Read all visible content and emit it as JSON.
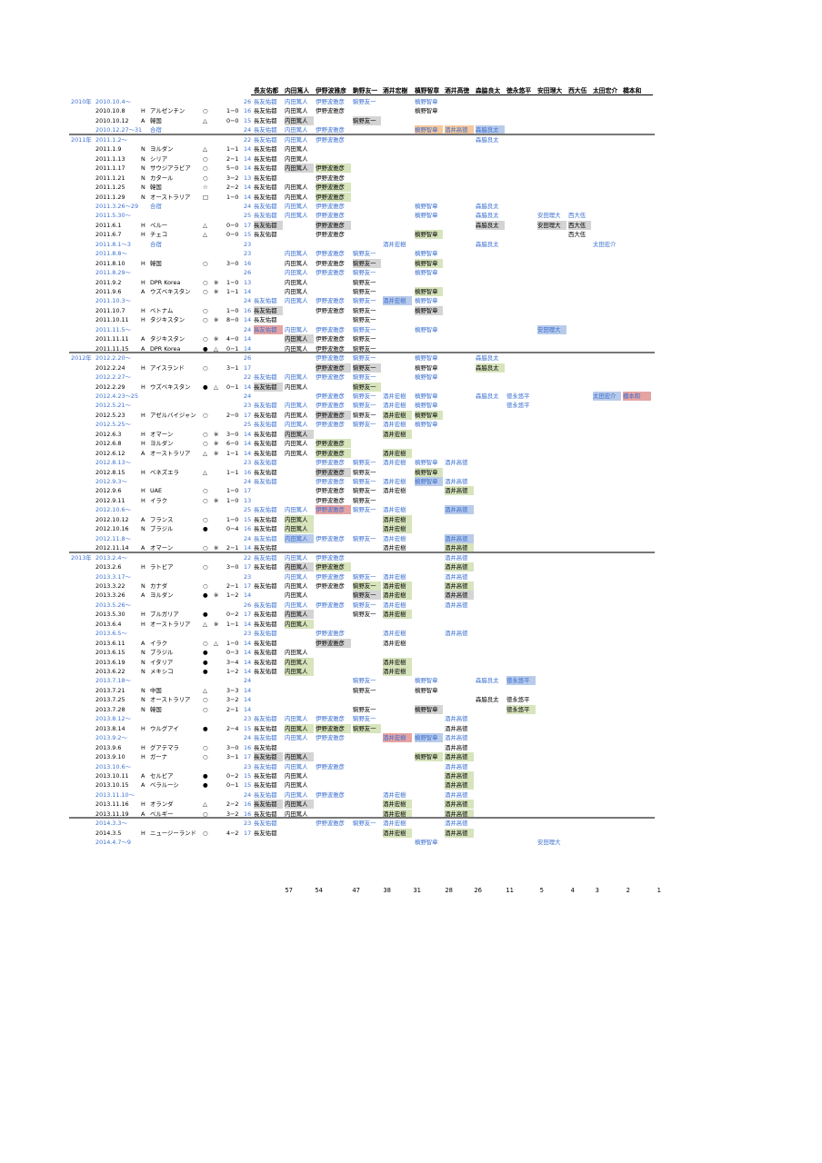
{
  "headers": [
    "長友佑都",
    "内田篤人",
    "伊野波雅彦",
    "駒野友一",
    "酒井宏樹",
    "槙野智章",
    "酒井高徳",
    "森脇良太",
    "徳永悠平",
    "安田理大",
    "西大伍",
    "太田宏介",
    "橋本和"
  ],
  "totals": [
    "57",
    "54",
    "47",
    "38",
    "31",
    "28",
    "26",
    "11",
    "5",
    "4",
    "3",
    "2",
    "1"
  ],
  "rows": [
    {
      "year": "2010年",
      "date": "2010.10.4～",
      "num": "26",
      "kind": "camp",
      "p": {
        "0": "",
        "1": "",
        "2": "",
        "3": "",
        "5": ""
      }
    },
    {
      "date": "2010.10.8",
      "ha": "H",
      "opp": "アルゼンチン",
      "res": "○",
      "score": "1−0",
      "num": "16",
      "p": {
        "0": "",
        "1": "",
        "2": "",
        "5": ""
      }
    },
    {
      "date": "2010.10.12",
      "ha": "A",
      "opp": "韓国",
      "res": "△",
      "score": "0−0",
      "num": "15",
      "p": {
        "0": "",
        "1": "g",
        "3": "g"
      }
    },
    {
      "date": "2010.12.27〜31",
      "opp": "合宿",
      "num": "24",
      "kind": "camp",
      "p": {
        "0": "",
        "1": "",
        "2": "",
        "5": "o",
        "6": "o",
        "7": "b"
      }
    },
    {
      "year": "2011年",
      "date": "2011.1.2〜",
      "num": "22",
      "kind": "camp",
      "sep": true,
      "p": {
        "0": "",
        "1": "",
        "2": "",
        "7": ""
      }
    },
    {
      "date": "2011.1.9",
      "ha": "N",
      "opp": "ヨルダン",
      "res": "△",
      "score": "1−1",
      "num": "14",
      "p": {
        "0": "",
        "1": ""
      }
    },
    {
      "date": "2011.1.13",
      "ha": "N",
      "opp": "シリア",
      "res": "○",
      "score": "2−1",
      "num": "14",
      "p": {
        "0": "",
        "1": ""
      }
    },
    {
      "date": "2011.1.17",
      "ha": "N",
      "opp": "サウジアラビア",
      "res": "○",
      "score": "5−0",
      "num": "14",
      "p": {
        "0": "",
        "1": "g",
        "2": "n"
      }
    },
    {
      "date": "2011.1.21",
      "ha": "N",
      "opp": "カタール",
      "res": "○",
      "score": "3−2",
      "num": "13",
      "p": {
        "0": "",
        "2": ""
      }
    },
    {
      "date": "2011.1.25",
      "ha": "N",
      "opp": "韓国",
      "res": "☆",
      "score": "2−2",
      "num": "14",
      "p": {
        "0": "",
        "1": "",
        "2": "n"
      }
    },
    {
      "date": "2011.1.29",
      "ha": "N",
      "opp": "オーストラリア",
      "res": "□",
      "score": "1−0",
      "num": "14",
      "p": {
        "0": "",
        "1": "",
        "2": "n"
      }
    },
    {
      "date": "2011.3.26〜29",
      "opp": "合宿",
      "num": "24",
      "kind": "camp",
      "p": {
        "0": "",
        "1": "",
        "2": "",
        "5": "",
        "7": ""
      }
    },
    {
      "date": "2011.5.30〜",
      "num": "25",
      "kind": "camp",
      "p": {
        "0": "",
        "1": "",
        "2": "",
        "5": "",
        "7": "",
        "9": "",
        "10": ""
      }
    },
    {
      "date": "2011.6.1",
      "ha": "H",
      "opp": "ペルー",
      "res": "△",
      "score": "0−0",
      "num": "17",
      "p": {
        "0": "g",
        "2": "g",
        "7": "g",
        "9": "g",
        "10": "g"
      }
    },
    {
      "date": "2011.6.7",
      "ha": "H",
      "opp": "チェコ",
      "res": "△",
      "score": "0−0",
      "num": "15",
      "p": {
        "0": "",
        "2": "",
        "5": "n",
        "10": ""
      }
    },
    {
      "date": "2011.8.1〜3",
      "opp": "合宿",
      "num": "23",
      "kind": "camp",
      "p": {
        "4": "",
        "7": "",
        "11": ""
      }
    },
    {
      "date": "2011.8.8〜",
      "num": "23",
      "kind": "camp",
      "p": {
        "1": "",
        "2": "",
        "3": "",
        "5": ""
      }
    },
    {
      "date": "2011.8.10",
      "ha": "H",
      "opp": "韓国",
      "res": "○",
      "score": "3−0",
      "num": "16",
      "p": {
        "1": "",
        "2": "",
        "3": "g",
        "5": "n"
      }
    },
    {
      "date": "2011.8.29〜",
      "num": "26",
      "kind": "camp",
      "p": {
        "1": "",
        "2": "",
        "3": "",
        "5": ""
      }
    },
    {
      "date": "2011.9.2",
      "ha": "H",
      "opp": "DPR Korea",
      "res": "○",
      "mark": "※",
      "score": "1−0",
      "num": "13",
      "p": {
        "1": "",
        "3": ""
      }
    },
    {
      "date": "2011.9.6",
      "ha": "A",
      "opp": "ウズベキスタン",
      "res": "○",
      "mark": "※",
      "score": "1−1",
      "num": "14",
      "p": {
        "1": "",
        "3": "",
        "5": "n"
      }
    },
    {
      "date": "2011.10.3〜",
      "num": "24",
      "kind": "camp",
      "p": {
        "0": "",
        "1": "",
        "2": "",
        "3": "",
        "4": "b",
        "5": ""
      }
    },
    {
      "date": "2011.10.7",
      "ha": "H",
      "opp": "ベトナム",
      "res": "○",
      "score": "1−0",
      "num": "16",
      "p": {
        "0": "g",
        "2": "",
        "3": "",
        "5": "g"
      }
    },
    {
      "date": "2011.10.11",
      "ha": "H",
      "opp": "タジキスタン",
      "res": "○",
      "mark": "※",
      "score": "8−0",
      "num": "14",
      "p": {
        "0": "",
        "3": ""
      }
    },
    {
      "date": "2011.11.5〜",
      "num": "24",
      "kind": "camp",
      "p": {
        "0": "r",
        "1": "",
        "2": "",
        "3": "",
        "5": "",
        "9": "b"
      }
    },
    {
      "date": "2011.11.11",
      "ha": "A",
      "opp": "タジキスタン",
      "res": "○",
      "mark": "※",
      "score": "4−0",
      "num": "14",
      "p": {
        "1": "g",
        "2": "",
        "3": ""
      }
    },
    {
      "date": "2011.11.15",
      "ha": "A",
      "opp": "DPR Korea",
      "res": "●",
      "mark": "△",
      "score": "0−1",
      "num": "14",
      "p": {
        "1": "",
        "2": "",
        "3": ""
      }
    },
    {
      "year": "2012年",
      "date": "2012.2.20〜",
      "num": "26",
      "kind": "camp",
      "sep": true,
      "p": {
        "2": "",
        "3": "",
        "5": "",
        "7": ""
      }
    },
    {
      "date": "2012.2.24",
      "ha": "H",
      "opp": "アイスランド",
      "res": "○",
      "score": "3−1",
      "num": "17",
      "p": {
        "2": "g",
        "3": "g",
        "5": "",
        "7": "n"
      }
    },
    {
      "date": "2012.2.27〜",
      "num": "22",
      "kind": "camp",
      "p": {
        "0": "",
        "1": "",
        "2": "",
        "3": "",
        "5": ""
      }
    },
    {
      "date": "2012.2.29",
      "ha": "H",
      "opp": "ウズベキスタン",
      "res": "●",
      "mark": "△",
      "score": "0−1",
      "num": "14",
      "p": {
        "0": "g",
        "1": "",
        "3": "n"
      }
    },
    {
      "date": "2012.4.23〜25",
      "num": "24",
      "kind": "camp",
      "p": {
        "2": "",
        "3": "",
        "4": "",
        "5": "",
        "7": "",
        "8": "",
        "11": "b",
        "12": "r"
      }
    },
    {
      "date": "2012.5.21〜",
      "num": "23",
      "kind": "camp",
      "p": {
        "0": "",
        "1": "",
        "2": "",
        "3": "",
        "4": "",
        "5": "",
        "8": ""
      }
    },
    {
      "date": "2012.5.23",
      "ha": "H",
      "opp": "アゼルバイジャン",
      "res": "○",
      "score": "2−0",
      "num": "17",
      "p": {
        "0": "",
        "1": "",
        "2": "g",
        "3": "",
        "4": "n",
        "5": "n"
      }
    },
    {
      "date": "2012.5.25〜",
      "num": "25",
      "kind": "camp",
      "p": {
        "0": "",
        "1": "",
        "2": "",
        "3": "",
        "4": "",
        "5": ""
      }
    },
    {
      "date": "2012.6.3",
      "ha": "H",
      "opp": "オマーン",
      "res": "○",
      "mark": "※",
      "score": "3−0",
      "num": "14",
      "p": {
        "0": "",
        "1": "g",
        "4": "n"
      }
    },
    {
      "date": "2012.6.8",
      "ha": "H",
      "opp": "ヨルダン",
      "res": "○",
      "mark": "※",
      "score": "6−0",
      "num": "14",
      "p": {
        "0": "",
        "1": "",
        "2": "n"
      }
    },
    {
      "date": "2012.6.12",
      "ha": "A",
      "opp": "オーストラリア",
      "res": "△",
      "mark": "※",
      "score": "1−1",
      "num": "14",
      "p": {
        "0": "",
        "1": "",
        "2": "n",
        "4": "n"
      }
    },
    {
      "date": "2012.8.13〜",
      "num": "23",
      "kind": "camp",
      "p": {
        "0": "",
        "2": "",
        "3": "",
        "4": "",
        "5": "",
        "6": ""
      }
    },
    {
      "date": "2012.8.15",
      "ha": "H",
      "opp": "ベネズエラ",
      "res": "△",
      "score": "1−1",
      "num": "16",
      "p": {
        "0": "",
        "2": "g",
        "3": "",
        "5": "n"
      }
    },
    {
      "date": "2012.9.3〜",
      "num": "24",
      "kind": "camp",
      "p": {
        "0": "",
        "2": "",
        "3": "",
        "4": "",
        "5": "b",
        "6": ""
      }
    },
    {
      "date": "2012.9.6",
      "ha": "H",
      "opp": "UAE",
      "res": "○",
      "score": "1−0",
      "num": "17",
      "p": {
        "2": "",
        "3": "",
        "4": "",
        "6": "n"
      }
    },
    {
      "date": "2012.9.11",
      "ha": "H",
      "opp": "イラク",
      "res": "○",
      "mark": "※",
      "score": "1−0",
      "num": "13",
      "p": {
        "2": "",
        "3": ""
      }
    },
    {
      "date": "2012.10.6〜",
      "num": "25",
      "kind": "camp",
      "p": {
        "0": "",
        "1": "",
        "2": "r",
        "3": "",
        "4": "",
        "6": "b"
      }
    },
    {
      "date": "2012.10.12",
      "ha": "A",
      "opp": "フランス",
      "res": "○",
      "score": "1−0",
      "num": "15",
      "p": {
        "0": "",
        "1": "n",
        "4": "n"
      }
    },
    {
      "date": "2012.10.16",
      "ha": "N",
      "opp": "ブラジル",
      "res": "●",
      "score": "0−4",
      "num": "16",
      "p": {
        "0": "",
        "1": "n",
        "4": "n"
      }
    },
    {
      "date": "2012.11.8〜",
      "num": "24",
      "kind": "camp",
      "p": {
        "0": "",
        "1": "b",
        "2": "",
        "3": "",
        "4": "",
        "6": "b"
      }
    },
    {
      "date": "2012.11.14",
      "ha": "A",
      "opp": "オマーン",
      "res": "○",
      "mark": "※",
      "score": "2−1",
      "num": "14",
      "p": {
        "0": "",
        "4": "",
        "6": "n"
      }
    },
    {
      "year": "2013年",
      "date": "2013.2.4〜",
      "num": "22",
      "kind": "camp",
      "sep": true,
      "p": {
        "0": "",
        "1": "",
        "2": "",
        "6": ""
      }
    },
    {
      "date": "2013.2.6",
      "ha": "H",
      "opp": "ラトビア",
      "res": "○",
      "score": "3−0",
      "num": "17",
      "p": {
        "0": "",
        "1": "g",
        "2": "n",
        "6": "n"
      }
    },
    {
      "date": "2013.3.17〜",
      "num": "23",
      "kind": "camp",
      "p": {
        "1": "",
        "2": "",
        "3": "",
        "4": "",
        "6": ""
      }
    },
    {
      "date": "2013.3.22",
      "ha": "N",
      "opp": "カナダ",
      "res": "○",
      "score": "2−1",
      "num": "17",
      "p": {
        "0": "",
        "1": "",
        "2": "",
        "3": "n",
        "4": "n",
        "6": "n"
      }
    },
    {
      "date": "2013.3.26",
      "ha": "A",
      "opp": "ヨルダン",
      "res": "●",
      "mark": "※",
      "score": "1−2",
      "num": "14",
      "p": {
        "1": "",
        "3": "g",
        "4": "n",
        "6": "g"
      }
    },
    {
      "date": "2013.5.26〜",
      "num": "26",
      "kind": "camp",
      "p": {
        "0": "",
        "1": "",
        "2": "",
        "3": "",
        "4": "",
        "6": ""
      }
    },
    {
      "date": "2013.5.30",
      "ha": "H",
      "opp": "ブルガリア",
      "res": "●",
      "score": "0−2",
      "num": "17",
      "p": {
        "0": "",
        "1": "g",
        "3": "",
        "4": "n"
      }
    },
    {
      "date": "2013.6.4",
      "ha": "H",
      "opp": "オーストラリア",
      "res": "△",
      "mark": "※",
      "score": "1−1",
      "num": "14",
      "p": {
        "0": "",
        "1": "n"
      }
    },
    {
      "date": "2013.6.5〜",
      "num": "23",
      "kind": "camp",
      "p": {
        "0": "",
        "2": "",
        "4": "",
        "6": ""
      }
    },
    {
      "date": "2013.6.11",
      "ha": "A",
      "opp": "イラク",
      "res": "○",
      "mark": "△",
      "score": "1−0",
      "num": "14",
      "p": {
        "0": "",
        "2": "g",
        "4": ""
      }
    },
    {
      "date": "2013.6.15",
      "ha": "N",
      "opp": "ブラジル",
      "res": "●",
      "score": "0−3",
      "num": "14",
      "p": {
        "0": "",
        "1": ""
      }
    },
    {
      "date": "2013.6.19",
      "ha": "N",
      "opp": "イタリア",
      "res": "●",
      "score": "3−4",
      "num": "14",
      "p": {
        "0": "",
        "1": "n",
        "4": "n"
      }
    },
    {
      "date": "2013.6.22",
      "ha": "N",
      "opp": "メキシコ",
      "res": "●",
      "score": "1−2",
      "num": "14",
      "p": {
        "0": "",
        "1": "n",
        "4": "n"
      }
    },
    {
      "date": "2013.7.18〜",
      "num": "24",
      "kind": "camp",
      "p": {
        "3": "",
        "5": "",
        "7": "",
        "8": "b"
      }
    },
    {
      "date": "2013.7.21",
      "ha": "N",
      "opp": "中国",
      "res": "△",
      "score": "3−3",
      "num": "14",
      "p": {
        "3": "",
        "5": ""
      }
    },
    {
      "date": "2013.7.25",
      "ha": "N",
      "opp": "オーストラリア",
      "res": "○",
      "score": "3−2",
      "num": "14",
      "p": {
        "7": "",
        "8": ""
      }
    },
    {
      "date": "2013.7.28",
      "ha": "N",
      "opp": "韓国",
      "res": "○",
      "score": "2−1",
      "num": "14",
      "p": {
        "3": "",
        "5": "g",
        "8": "n"
      }
    },
    {
      "date": "2013.8.12〜",
      "num": "23",
      "kind": "camp",
      "p": {
        "0": "",
        "1": "",
        "2": "",
        "3": "",
        "6": ""
      }
    },
    {
      "date": "2013.8.14",
      "ha": "H",
      "opp": "ウルグアイ",
      "res": "●",
      "score": "2−4",
      "num": "15",
      "p": {
        "0": "",
        "1": "n",
        "2": "n",
        "3": "n",
        "6": ""
      }
    },
    {
      "date": "2013.9.2〜",
      "num": "24",
      "kind": "camp",
      "p": {
        "0": "",
        "1": "",
        "2": "",
        "4": "r",
        "5": "b",
        "6": ""
      }
    },
    {
      "date": "2013.9.6",
      "ha": "H",
      "opp": "グアテマラ",
      "res": "○",
      "score": "3−0",
      "num": "16",
      "p": {
        "0": "",
        "6": ""
      }
    },
    {
      "date": "2013.9.10",
      "ha": "H",
      "opp": "ガーナ",
      "res": "○",
      "score": "3−1",
      "num": "17",
      "p": {
        "0": "g",
        "1": "g",
        "5": "n",
        "6": "n"
      }
    },
    {
      "date": "2013.10.6〜",
      "num": "23",
      "kind": "camp",
      "p": {
        "0": "",
        "1": "",
        "2": "",
        "6": ""
      }
    },
    {
      "date": "2013.10.11",
      "ha": "A",
      "opp": "セルビア",
      "res": "●",
      "score": "0−2",
      "num": "15",
      "p": {
        "0": "",
        "1": "",
        "6": "n"
      }
    },
    {
      "date": "2013.10.15",
      "ha": "A",
      "opp": "ベラルーシ",
      "res": "●",
      "score": "0−1",
      "num": "15",
      "p": {
        "0": "",
        "1": "",
        "6": "n"
      }
    },
    {
      "date": "2013.11.10〜",
      "num": "24",
      "kind": "camp",
      "p": {
        "0": "",
        "1": "",
        "2": "",
        "4": "",
        "6": ""
      }
    },
    {
      "date": "2013.11.16",
      "ha": "H",
      "opp": "オランダ",
      "res": "△",
      "score": "2−2",
      "num": "16",
      "p": {
        "0": "g",
        "1": "g",
        "4": "n",
        "6": "n"
      }
    },
    {
      "date": "2013.11.19",
      "ha": "A",
      "opp": "ベルギー",
      "res": "○",
      "score": "3−2",
      "num": "16",
      "p": {
        "0": "",
        "1": "",
        "4": "n",
        "6": "n"
      }
    },
    {
      "date": "2014.3.3〜",
      "num": "23",
      "kind": "camp",
      "sep": true,
      "p": {
        "0": "",
        "2": "",
        "3": "",
        "4": "",
        "6": ""
      }
    },
    {
      "date": "2014.3.5",
      "ha": "H",
      "opp": "ニュージーランド",
      "res": "○",
      "score": "4−2",
      "num": "17",
      "p": {
        "0": "",
        "4": "n",
        "6": "n"
      }
    },
    {
      "date": "2014.4.7〜9",
      "num": "",
      "kind": "camp",
      "p": {
        "5": "",
        "9": ""
      }
    }
  ]
}
